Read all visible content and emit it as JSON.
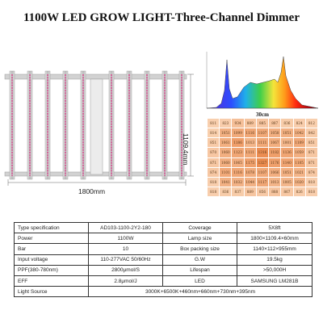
{
  "title": "1100W LED GROW LIGHT-Three-Channel Dimmer",
  "dimensions": {
    "width": "1800mm",
    "height": "1109.4mm"
  },
  "ppfd_map": {
    "title": "30cm",
    "rows": [
      [
        "811",
        "823",
        "934",
        "889",
        "885",
        "887",
        "836",
        "824",
        "812"
      ],
      [
        "814",
        "1051",
        "1099",
        "1116",
        "1107",
        "1058",
        "1051",
        "1042",
        "842"
      ],
      [
        "851",
        "1061",
        "1186",
        "1013",
        "1111",
        "1067",
        "1001",
        "1109",
        "851"
      ],
      [
        "870",
        "1060",
        "1123",
        "1111",
        "1316",
        "1182",
        "1136",
        "1059",
        "871"
      ],
      [
        "871",
        "1060",
        "1065",
        "1175",
        "1327",
        "1176",
        "1140",
        "1105",
        "871"
      ],
      [
        "874",
        "1101",
        "1116",
        "1078",
        "1107",
        "1066",
        "1051",
        "1021",
        "874"
      ],
      [
        "818",
        "1041",
        "1032",
        "1044",
        "1117",
        "1013",
        "1005",
        "1020",
        "818"
      ],
      [
        "818",
        "836",
        "837",
        "889",
        "856",
        "888",
        "867",
        "826",
        "818"
      ]
    ]
  },
  "specs": [
    {
      "label": "Type specification",
      "value": "AD103-1100-2Y2-180",
      "label2": "Coverage",
      "value2": "5X8ft"
    },
    {
      "label": "Power",
      "value": "1100W",
      "label2": "Lamp size",
      "value2": "1800×1109.4×60mm"
    },
    {
      "label": "Bar",
      "value": "10",
      "label2": "Box packing size",
      "value2": "1140×112×955mm"
    },
    {
      "label": "Input voltage",
      "value": "110-277VAC 50/60Hz",
      "label2": "G.W",
      "value2": "19.5kg"
    },
    {
      "label": "PPF(380-780nm)",
      "value": "2800μmol/S",
      "label2": "Lifespan",
      "value2": ">50,000H"
    },
    {
      "label": "EFF",
      "value": "2.8μmol/J",
      "label2": "LED",
      "value2": "SAMSUNG LM281B"
    }
  ],
  "light_source": {
    "label": "Light Source",
    "value": "3000K+6500K+460nm+660nm+730nm+395nm"
  },
  "colors": {
    "bar_frame": "#c8c8c8",
    "led_pink": "#d94c8f",
    "ppfd_high": "#ef9a5f",
    "ppfd_low": "#f8cfae"
  }
}
